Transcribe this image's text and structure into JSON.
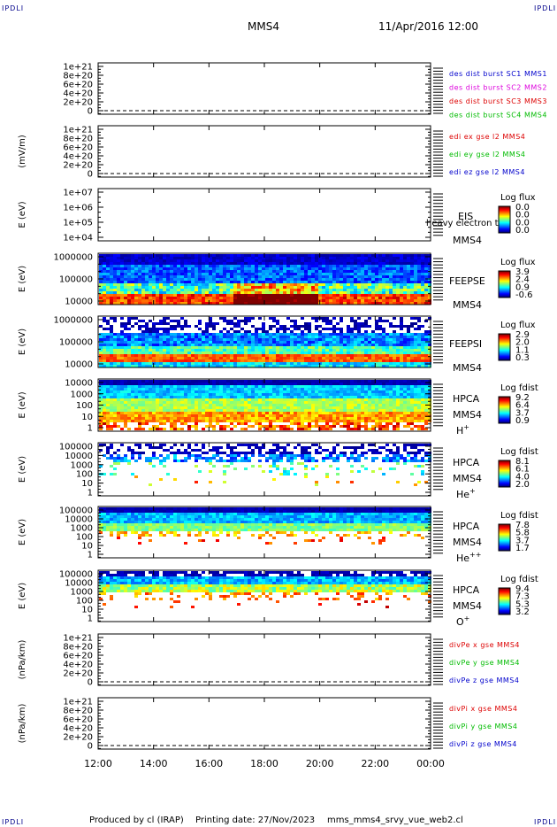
{
  "header": {
    "corner_label": "IPDLI",
    "spacecraft": "MMS4",
    "datetime": "11/Apr/2016 12:00"
  },
  "footer": {
    "produced_by": "Produced by cl (IRAP)",
    "printing_date": "Printing date: 27/Nov/2023",
    "filename": "mms_mms4_srvy_vue_web2.cl"
  },
  "colors": {
    "mms1": "#0000cc",
    "mms2": "#dd00dd",
    "mms3": "#dd0000",
    "mms4": "#00bb00",
    "x": "#dd0000",
    "y": "#00bb00",
    "z": "#0000cc"
  },
  "chart_data": [
    {
      "type": "line",
      "ylabel": "",
      "yticks": [
        "1e+21",
        "8e+20",
        "6e+20",
        "4e+20",
        "2e+20",
        "0"
      ],
      "legend": [
        {
          "text": "des dist burst SC1 MMS1",
          "color": "#0000cc"
        },
        {
          "text": "des dist burst SC2 MMS2",
          "color": "#dd00dd"
        },
        {
          "text": "des dist burst SC3 MMS3",
          "color": "#dd0000"
        },
        {
          "text": "des dist burst SC4 MMS4",
          "color": "#00bb00"
        }
      ],
      "series": [],
      "zero_line": "dashed"
    },
    {
      "type": "line",
      "ylabel": "(mV/m)",
      "yticks": [
        "1e+21",
        "8e+20",
        "6e+20",
        "4e+20",
        "2e+20",
        "0"
      ],
      "legend": [
        {
          "text": "edi ex gse l2 MMS4",
          "color": "#dd0000"
        },
        {
          "text": "edi ey gse l2 MMS4",
          "color": "#00bb00"
        },
        {
          "text": "edi ez gse l2 MMS4",
          "color": "#0000cc"
        }
      ],
      "series": [],
      "zero_line": "dashed"
    },
    {
      "type": "heatmap",
      "ylabel": "E (eV)",
      "yscale": "log",
      "yticks": [
        "1e+07",
        "1e+06",
        "1e+05",
        "1e+04"
      ],
      "instrument": "EIS",
      "spacecraft": "MMS4",
      "extra_label": "heavy electron to",
      "colorbar_title": "Log flux",
      "colorbar_ticks": [
        "0.0",
        "0.0",
        "0.0",
        "0.0"
      ],
      "data_coverage": "none"
    },
    {
      "type": "heatmap",
      "ylabel": "E (eV)",
      "yscale": "log",
      "yticks": [
        "1000000",
        "100000",
        "10000"
      ],
      "instrument": "FEEPSE",
      "spacecraft": "MMS4",
      "colorbar_title": "Log flux",
      "colorbar_ticks": [
        "3.9",
        "2.4",
        "0.9",
        "-0.6"
      ],
      "data_coverage": "full"
    },
    {
      "type": "heatmap",
      "ylabel": "E (eV)",
      "yscale": "log",
      "yticks": [
        "1000000",
        "100000",
        "10000"
      ],
      "instrument": "FEEPSI",
      "spacecraft": "MMS4",
      "colorbar_title": "Log flux",
      "colorbar_ticks": [
        "2.9",
        "2.0",
        "1.1",
        "0.3"
      ],
      "data_coverage": "full"
    },
    {
      "type": "heatmap",
      "ylabel": "E (eV)",
      "yscale": "log",
      "yticks": [
        "10000",
        "1000",
        "100",
        "10",
        "1"
      ],
      "instrument": "HPCA",
      "spacecraft": "MMS4",
      "species": "H",
      "species_charge": "+",
      "colorbar_title": "Log fdist",
      "colorbar_ticks": [
        "9.2",
        "6.4",
        "3.7",
        "0.9"
      ],
      "data_coverage": "full"
    },
    {
      "type": "heatmap",
      "ylabel": "E (eV)",
      "yscale": "log",
      "yticks": [
        "100000",
        "10000",
        "1000",
        "100",
        "10",
        "1"
      ],
      "instrument": "HPCA",
      "spacecraft": "MMS4",
      "species": "He",
      "species_charge": "+",
      "colorbar_title": "Log fdist",
      "colorbar_ticks": [
        "8.1",
        "6.1",
        "4.0",
        "2.0"
      ],
      "data_coverage": "full"
    },
    {
      "type": "heatmap",
      "ylabel": "E (eV)",
      "yscale": "log",
      "yticks": [
        "100000",
        "10000",
        "1000",
        "100",
        "10",
        "1"
      ],
      "instrument": "HPCA",
      "spacecraft": "MMS4",
      "species": "He",
      "species_charge": "++",
      "colorbar_title": "Log fdist",
      "colorbar_ticks": [
        "7.8",
        "5.8",
        "3.7",
        "1.7"
      ],
      "data_coverage": "full"
    },
    {
      "type": "heatmap",
      "ylabel": "E (eV)",
      "yscale": "log",
      "yticks": [
        "100000",
        "10000",
        "1000",
        "100",
        "10",
        "1"
      ],
      "instrument": "HPCA",
      "spacecraft": "MMS4",
      "species": "O",
      "species_charge": "+",
      "colorbar_title": "Log fdist",
      "colorbar_ticks": [
        "9.4",
        "7.3",
        "5.3",
        "3.2"
      ],
      "data_coverage": "full"
    },
    {
      "type": "line",
      "ylabel": "(nPa/km)",
      "yticks": [
        "1e+21",
        "8e+20",
        "6e+20",
        "4e+20",
        "2e+20",
        "0"
      ],
      "legend": [
        {
          "text": "divPe x gse MMS4",
          "color": "#dd0000"
        },
        {
          "text": "divPe y gse MMS4",
          "color": "#00bb00"
        },
        {
          "text": "divPe z gse MMS4",
          "color": "#0000cc"
        }
      ],
      "series": [],
      "zero_line": "dashed"
    },
    {
      "type": "line",
      "ylabel": "(nPa/km)",
      "yticks": [
        "1e+21",
        "8e+20",
        "6e+20",
        "4e+20",
        "2e+20",
        "0"
      ],
      "legend": [
        {
          "text": "divPi x gse MMS4",
          "color": "#dd0000"
        },
        {
          "text": "divPi y gse MMS4",
          "color": "#00bb00"
        },
        {
          "text": "divPi z gse MMS4",
          "color": "#0000cc"
        }
      ],
      "series": [],
      "zero_line": "dashed"
    }
  ],
  "x_axis": {
    "ticks": [
      "12:00",
      "14:00",
      "16:00",
      "18:00",
      "20:00",
      "22:00",
      "00:00"
    ]
  }
}
